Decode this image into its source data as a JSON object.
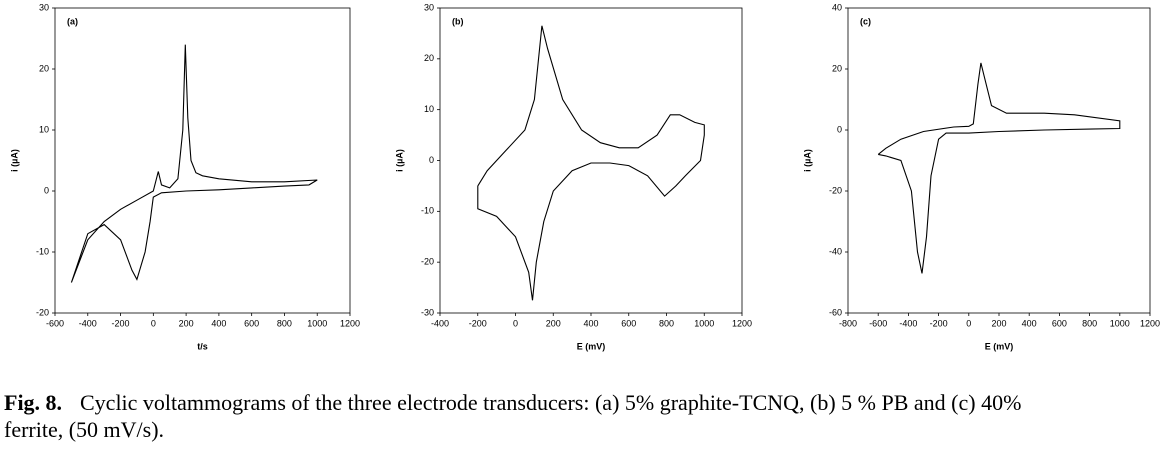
{
  "chart_data": [
    {
      "type": "line",
      "panel_label": "(a)",
      "xlabel": "t/s",
      "ylabel": "i (µA)",
      "color": "#000000",
      "xlim": [
        -600,
        1200
      ],
      "ylim": [
        -20,
        30
      ],
      "xticks": [
        -600,
        -400,
        -200,
        0,
        200,
        400,
        600,
        800,
        1000,
        1200
      ],
      "yticks": [
        -20,
        -10,
        0,
        10,
        20,
        30
      ],
      "x": [
        -500,
        -400,
        -300,
        -200,
        -100,
        0,
        30,
        50,
        100,
        150,
        180,
        195,
        210,
        230,
        260,
        300,
        400,
        600,
        800,
        1000,
        950,
        800,
        600,
        400,
        200,
        50,
        0,
        -20,
        -50,
        -100,
        -130,
        -200,
        -300,
        -400,
        -500
      ],
      "values": [
        -15,
        -8,
        -5,
        -3,
        -1.5,
        0,
        3.2,
        1,
        0.5,
        2,
        10,
        24,
        12,
        5,
        3,
        2.5,
        2,
        1.5,
        1.5,
        1.8,
        1,
        0.8,
        0.5,
        0.2,
        0,
        -0.3,
        -1,
        -5,
        -10,
        -14.5,
        -13,
        -8,
        -5.5,
        -7,
        -15
      ]
    },
    {
      "type": "line",
      "panel_label": "(b)",
      "xlabel": "E (mV)",
      "ylabel": "i (µA)",
      "color": "#000000",
      "xlim": [
        -400,
        1200
      ],
      "ylim": [
        -30,
        30
      ],
      "xticks": [
        -400,
        -200,
        0,
        200,
        400,
        600,
        800,
        1000,
        1200
      ],
      "yticks": [
        -30,
        -20,
        -10,
        0,
        10,
        20,
        30
      ],
      "x": [
        -200,
        -150,
        -50,
        50,
        100,
        140,
        170,
        250,
        350,
        450,
        550,
        650,
        750,
        820,
        870,
        950,
        1000,
        1000,
        980,
        900,
        850,
        790,
        700,
        600,
        500,
        400,
        300,
        200,
        150,
        110,
        90,
        70,
        0,
        -100,
        -200,
        -200
      ],
      "values": [
        -5,
        -2,
        2,
        6,
        12,
        26.5,
        22,
        12,
        6,
        3.5,
        2.5,
        2.5,
        5,
        9,
        9,
        7.5,
        7,
        5,
        0,
        -3,
        -5,
        -7,
        -3,
        -1,
        -0.5,
        -0.5,
        -2,
        -6,
        -12,
        -20,
        -27.5,
        -22,
        -15,
        -11,
        -9.5,
        -5
      ]
    },
    {
      "type": "line",
      "panel_label": "(c)",
      "xlabel": "E (mV)",
      "ylabel": "i (µA)",
      "color": "#000000",
      "xlim": [
        -800,
        1200
      ],
      "ylim": [
        -60,
        40
      ],
      "xticks": [
        -800,
        -600,
        -400,
        -200,
        0,
        200,
        400,
        600,
        800,
        1000,
        1200
      ],
      "yticks": [
        -60,
        -40,
        -20,
        0,
        20,
        40
      ],
      "x": [
        -600,
        -550,
        -450,
        -300,
        -100,
        0,
        30,
        60,
        80,
        100,
        150,
        250,
        500,
        700,
        1000,
        1000,
        800,
        500,
        200,
        0,
        -150,
        -200,
        -250,
        -280,
        -310,
        -340,
        -380,
        -450,
        -550,
        -600
      ],
      "values": [
        -8,
        -6,
        -3,
        -0.5,
        1,
        1.2,
        2,
        15,
        22,
        18,
        8,
        5.5,
        5.5,
        5,
        3,
        0.5,
        0.3,
        0,
        -0.5,
        -1,
        -1,
        -3,
        -15,
        -35,
        -47,
        -40,
        -20,
        -10,
        -8.5,
        -8
      ]
    }
  ],
  "caption": {
    "label": "Fig. 8.",
    "text": "Cyclic voltammograms of the three electrode transducers: (a) 5% graphite-TCNQ, (b) 5 % PB and (c) 40%",
    "text2": "ferrite, (50 mV/s)."
  }
}
